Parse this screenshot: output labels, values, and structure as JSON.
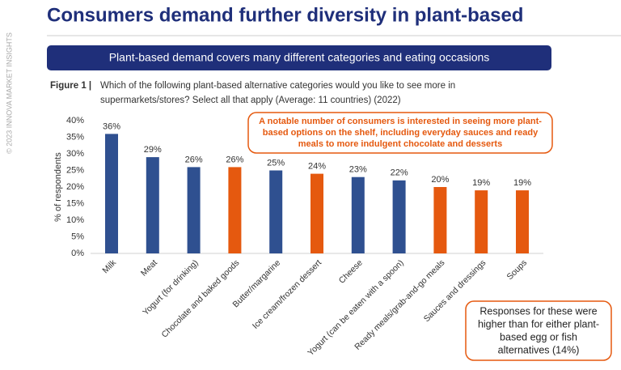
{
  "chart_data": {
    "type": "bar",
    "title": "Consumers demand further diversity in plant-based",
    "copyright": "© 2023 INNOVA MARKET INSIGHTS",
    "banner": "Plant-based demand covers many different categories and eating occasions",
    "figure_label": "Figure 1 |",
    "question": [
      "Which of the following plant-based alternative categories would you like to see more in",
      "supermarkets/stores? Select all that apply (Average: 11 countries) (2022)"
    ],
    "callout": [
      "A notable number of consumers is interested in seeing more plant-",
      "based options on the shelf, including everyday sauces and ready",
      "meals to more indulgent chocolate and desserts"
    ],
    "note": [
      "Responses for these were",
      "higher than for either plant-",
      "based egg or fish",
      "alternatives (14%)"
    ],
    "y_label": "% of respondents",
    "categories": [
      "Milk",
      "Meat",
      "Yogurt (for drinking)",
      "Chocolate and baked goods",
      "Butter/margarine",
      "Ice cream/frozen dessert",
      "Cheese",
      "Yogurt (can be eaten with a spoon)",
      "Ready meals/grab-and-go meals",
      "Sauces and dressings",
      "Soups"
    ],
    "values": [
      36,
      29,
      26,
      26,
      25,
      24,
      23,
      22,
      20,
      19,
      19
    ],
    "value_labels": [
      "36%",
      "29%",
      "26%",
      "26%",
      "25%",
      "24%",
      "23%",
      "22%",
      "20%",
      "19%",
      "19%"
    ],
    "colors": [
      "#2f5090",
      "#2f5090",
      "#2f5090",
      "#e5590f",
      "#2f5090",
      "#e5590f",
      "#2f5090",
      "#2f5090",
      "#e5590f",
      "#e5590f",
      "#e5590f"
    ],
    "ylim": [
      0,
      40
    ],
    "yticks": [
      {
        "value": 0,
        "label": "0%"
      },
      {
        "value": 5,
        "label": "5%"
      },
      {
        "value": 10,
        "label": "10%"
      },
      {
        "value": 15,
        "label": "15%"
      },
      {
        "value": 20,
        "label": "20%"
      },
      {
        "value": 25,
        "label": "25%"
      },
      {
        "value": 30,
        "label": "30%"
      },
      {
        "value": 35,
        "label": "35%"
      },
      {
        "value": 40,
        "label": "40%"
      }
    ]
  }
}
